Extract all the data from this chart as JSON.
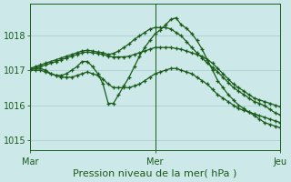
{
  "background_color": "#cce8e8",
  "grid_color": "#aacfcf",
  "line_color": "#1a5c1a",
  "xlabel": "Pression niveau de la mer( hPa )",
  "xlabel_fontsize": 8,
  "xtick_labels": [
    "Mar",
    "Mer",
    "Jeu"
  ],
  "xtick_positions": [
    0,
    24,
    48
  ],
  "ylim": [
    1014.7,
    1018.9
  ],
  "yticks": [
    1015,
    1016,
    1017,
    1018
  ],
  "ytick_fontsize": 7,
  "xtick_fontsize": 7,
  "n_points": 49,
  "series": [
    [
      1017.05,
      1017.05,
      1017.05,
      1017.0,
      1016.9,
      1016.85,
      1016.85,
      1016.9,
      1017.0,
      1017.1,
      1017.25,
      1017.25,
      1017.1,
      1016.9,
      1016.6,
      1016.05,
      1016.05,
      1016.3,
      1016.55,
      1016.8,
      1017.1,
      1017.4,
      1017.65,
      1017.85,
      1018.05,
      1018.15,
      1018.3,
      1018.45,
      1018.5,
      1018.3,
      1018.2,
      1018.05,
      1017.85,
      1017.6,
      1017.3,
      1017.0,
      1016.7,
      1016.5,
      1016.3,
      1016.15,
      1016.0,
      1015.9,
      1015.8,
      1015.7,
      1015.6,
      1015.5,
      1015.45,
      1015.4,
      1015.35
    ],
    [
      1017.0,
      1017.0,
      1017.0,
      1016.95,
      1016.9,
      1016.85,
      1016.8,
      1016.8,
      1016.8,
      1016.85,
      1016.9,
      1016.95,
      1016.9,
      1016.85,
      1016.75,
      1016.6,
      1016.5,
      1016.5,
      1016.5,
      1016.5,
      1016.55,
      1016.6,
      1016.7,
      1016.8,
      1016.9,
      1016.95,
      1017.0,
      1017.05,
      1017.05,
      1017.0,
      1016.95,
      1016.9,
      1016.8,
      1016.7,
      1016.6,
      1016.45,
      1016.3,
      1016.2,
      1016.1,
      1016.0,
      1015.9,
      1015.85,
      1015.8,
      1015.75,
      1015.7,
      1015.65,
      1015.6,
      1015.55,
      1015.5
    ],
    [
      1017.0,
      1017.05,
      1017.1,
      1017.15,
      1017.2,
      1017.25,
      1017.3,
      1017.35,
      1017.4,
      1017.45,
      1017.5,
      1017.52,
      1017.5,
      1017.48,
      1017.45,
      1017.4,
      1017.38,
      1017.38,
      1017.38,
      1017.4,
      1017.45,
      1017.5,
      1017.55,
      1017.6,
      1017.65,
      1017.65,
      1017.65,
      1017.65,
      1017.62,
      1017.6,
      1017.55,
      1017.5,
      1017.45,
      1017.4,
      1017.3,
      1017.2,
      1017.05,
      1016.9,
      1016.75,
      1016.6,
      1016.5,
      1016.4,
      1016.3,
      1016.2,
      1016.15,
      1016.1,
      1016.05,
      1016.0,
      1015.95
    ],
    [
      1017.05,
      1017.1,
      1017.15,
      1017.2,
      1017.25,
      1017.3,
      1017.35,
      1017.4,
      1017.45,
      1017.5,
      1017.55,
      1017.57,
      1017.55,
      1017.52,
      1017.5,
      1017.45,
      1017.48,
      1017.55,
      1017.65,
      1017.75,
      1017.88,
      1017.98,
      1018.08,
      1018.18,
      1018.22,
      1018.22,
      1018.22,
      1018.18,
      1018.08,
      1017.98,
      1017.82,
      1017.65,
      1017.5,
      1017.35,
      1017.2,
      1017.08,
      1016.95,
      1016.8,
      1016.65,
      1016.5,
      1016.4,
      1016.3,
      1016.2,
      1016.1,
      1016.05,
      1015.98,
      1015.88,
      1015.78,
      1015.72
    ]
  ]
}
